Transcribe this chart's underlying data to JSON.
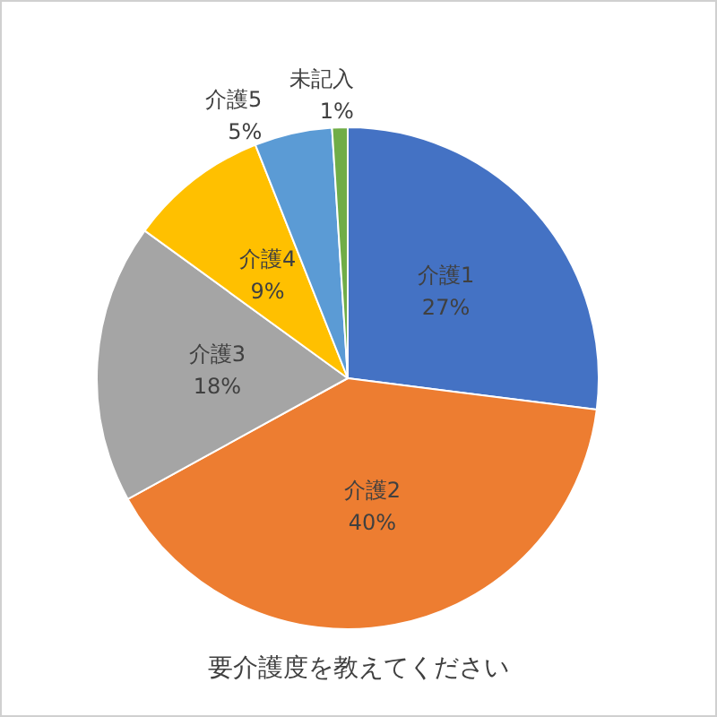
{
  "chart_data": {
    "type": "pie",
    "title": "要介護度を教えてください",
    "categories": [
      "介護1",
      "介護2",
      "介護3",
      "介護4",
      "介護5",
      "未記入"
    ],
    "values": [
      27,
      40,
      18,
      9,
      5,
      1
    ],
    "colors": [
      "#4472c4",
      "#ed7d31",
      "#a5a5a5",
      "#ffc000",
      "#5b9bd5",
      "#70ad47"
    ],
    "value_labels": [
      "27%",
      "40%",
      "18%",
      "9%",
      "5%",
      "1%"
    ],
    "legend": false
  }
}
